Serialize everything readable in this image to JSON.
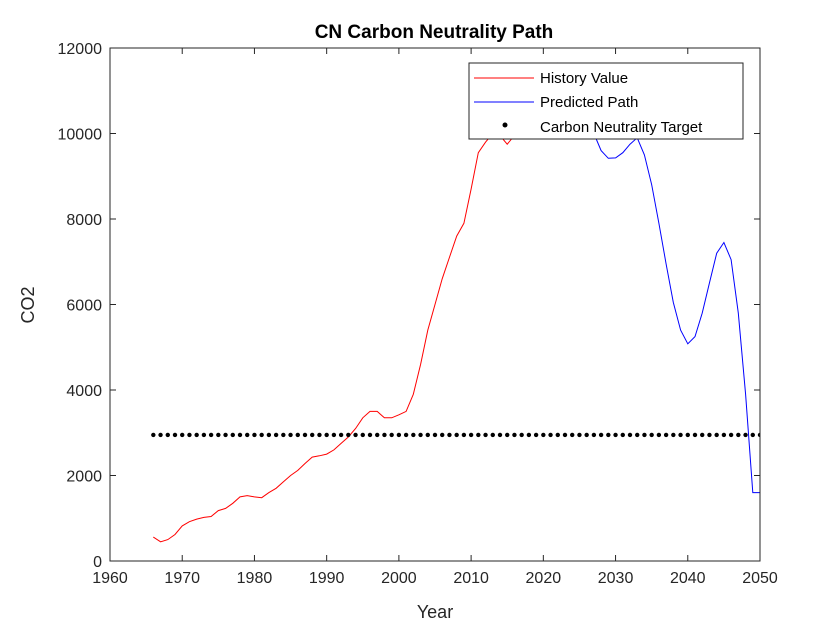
{
  "chart_data": {
    "type": "line",
    "title": "CN Carbon Neutrality Path",
    "xlabel": "Year",
    "ylabel": "CO2",
    "xlim": [
      1960,
      2050
    ],
    "ylim": [
      0,
      12000
    ],
    "xticks": [
      1960,
      1970,
      1980,
      1990,
      2000,
      2010,
      2020,
      2030,
      2040,
      2050
    ],
    "yticks": [
      0,
      2000,
      4000,
      6000,
      8000,
      10000,
      12000
    ],
    "grid": false,
    "legend_position": "top-right",
    "series": [
      {
        "name": "History Value",
        "color": "#ff0000",
        "style": "line",
        "x": [
          1966,
          1967,
          1968,
          1969,
          1970,
          1971,
          1972,
          1973,
          1974,
          1975,
          1976,
          1977,
          1978,
          1979,
          1980,
          1981,
          1982,
          1983,
          1984,
          1985,
          1986,
          1987,
          1988,
          1989,
          1990,
          1991,
          1992,
          1993,
          1994,
          1995,
          1996,
          1997,
          1998,
          1999,
          2000,
          2001,
          2002,
          2003,
          2004,
          2005,
          2006,
          2007,
          2008,
          2009,
          2010,
          2011,
          2012,
          2013,
          2014,
          2015,
          2016,
          2017,
          2018,
          2019
        ],
        "y": [
          560,
          450,
          500,
          620,
          820,
          920,
          980,
          1020,
          1040,
          1180,
          1230,
          1350,
          1500,
          1530,
          1500,
          1480,
          1600,
          1700,
          1850,
          2000,
          2120,
          2280,
          2430,
          2460,
          2500,
          2600,
          2750,
          2900,
          3100,
          3350,
          3500,
          3500,
          3350,
          3350,
          3420,
          3500,
          3900,
          4600,
          5400,
          6000,
          6600,
          7100,
          7600,
          7900,
          8700,
          9550,
          9800,
          10000,
          9950,
          9750,
          9950,
          10150,
          10300,
          10350
        ]
      },
      {
        "name": "Predicted Path",
        "color": "#0000ff",
        "style": "line",
        "x": [
          2019,
          2020,
          2021,
          2022,
          2023,
          2024,
          2025,
          2026,
          2027,
          2028,
          2029,
          2030,
          2031,
          2032,
          2033,
          2034,
          2035,
          2036,
          2037,
          2038,
          2039,
          2040,
          2041,
          2042,
          2043,
          2044,
          2045,
          2046,
          2047,
          2048,
          2049,
          2050
        ],
        "y": [
          10350,
          10500,
          11100,
          11650,
          11600,
          11200,
          10700,
          10300,
          10000,
          9600,
          9420,
          9430,
          9550,
          9750,
          9900,
          9500,
          8800,
          7900,
          6950,
          6050,
          5400,
          5080,
          5250,
          5800,
          6500,
          7200,
          7450,
          7050,
          5800,
          3900,
          1600,
          1600
        ]
      },
      {
        "name": "Carbon Neutrality Target",
        "color": "#000000",
        "style": "markers",
        "x_range": [
          1966,
          2050
        ],
        "x_step": 1,
        "y_constant": 2950
      }
    ]
  }
}
